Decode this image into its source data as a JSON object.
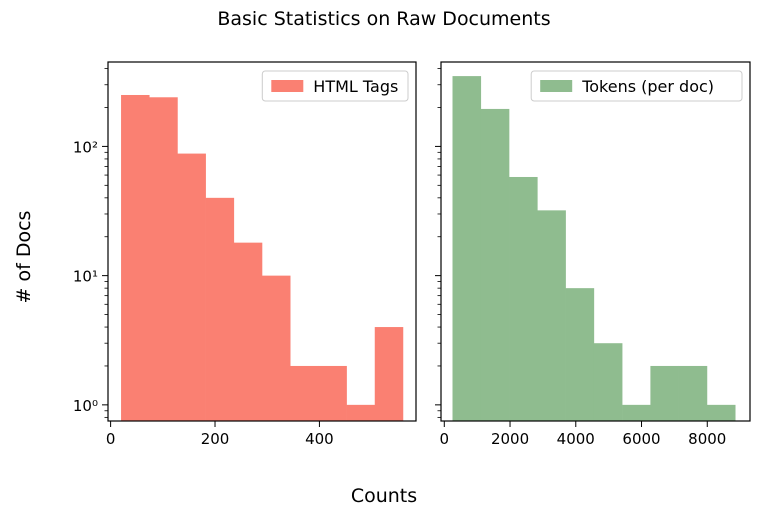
{
  "figure": {
    "title": "Basic Statistics on Raw Documents",
    "xlabel": "Counts",
    "ylabel": "# of Docs"
  },
  "chart_data": [
    {
      "type": "bar",
      "subtype": "histogram",
      "legend_label": "HTML Tags",
      "legend_loc": "upper right",
      "color": "#fa8072",
      "yscale": "log",
      "xlim": [
        -5,
        585
      ],
      "ylim": [
        0.75,
        450
      ],
      "xticks": [
        0,
        200,
        400
      ],
      "xtick_labels": [
        "0",
        "200",
        "400"
      ],
      "yticks": [
        1,
        10,
        100
      ],
      "ytick_labels": [
        "10⁰",
        "10¹",
        "10²"
      ],
      "bins": [
        {
          "x0": 20,
          "x1": 74,
          "count": 250
        },
        {
          "x0": 74,
          "x1": 128,
          "count": 240
        },
        {
          "x0": 128,
          "x1": 182,
          "count": 88
        },
        {
          "x0": 182,
          "x1": 236,
          "count": 40
        },
        {
          "x0": 236,
          "x1": 290,
          "count": 18
        },
        {
          "x0": 290,
          "x1": 344,
          "count": 10
        },
        {
          "x0": 344,
          "x1": 398,
          "count": 2
        },
        {
          "x0": 398,
          "x1": 452,
          "count": 2
        },
        {
          "x0": 452,
          "x1": 506,
          "count": 1
        },
        {
          "x0": 506,
          "x1": 560,
          "count": 4
        }
      ]
    },
    {
      "type": "bar",
      "subtype": "histogram",
      "legend_label": "Tokens (per doc)",
      "legend_loc": "upper right",
      "color": "#8fbc8f",
      "yscale": "log",
      "xlim": [
        -100,
        9300
      ],
      "ylim": [
        0.75,
        450
      ],
      "xticks": [
        0,
        2000,
        4000,
        6000,
        8000
      ],
      "xtick_labels": [
        "0",
        "2000",
        "4000",
        "6000",
        "8000"
      ],
      "yticks": [
        1,
        10,
        100
      ],
      "ytick_labels": [
        "",
        "",
        ""
      ],
      "bins": [
        {
          "x0": 250,
          "x1": 1110,
          "count": 350
        },
        {
          "x0": 1110,
          "x1": 1970,
          "count": 195
        },
        {
          "x0": 1970,
          "x1": 2830,
          "count": 58
        },
        {
          "x0": 2830,
          "x1": 3690,
          "count": 32
        },
        {
          "x0": 3690,
          "x1": 4550,
          "count": 8
        },
        {
          "x0": 4550,
          "x1": 5410,
          "count": 3
        },
        {
          "x0": 5410,
          "x1": 6270,
          "count": 1
        },
        {
          "x0": 6270,
          "x1": 7130,
          "count": 2
        },
        {
          "x0": 7130,
          "x1": 7990,
          "count": 2
        },
        {
          "x0": 7990,
          "x1": 8850,
          "count": 1
        }
      ]
    }
  ]
}
